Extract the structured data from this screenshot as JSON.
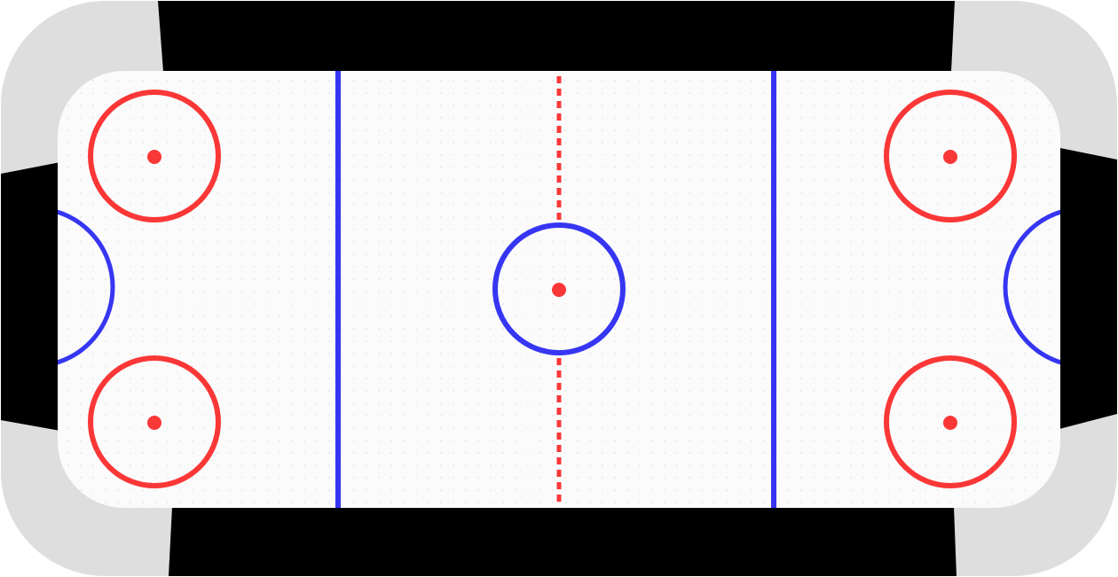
{
  "game": {
    "type": "air-hockey-table",
    "colors": {
      "background": "#ffffff",
      "rail_outer": "#dedede",
      "wall": "#000000",
      "ice": "#fbfbfb",
      "ice_dot": "#e2e2e2",
      "red_line": "#fa3737",
      "blue_line": "#3636f2"
    },
    "markings": {
      "faceoff_circles": [
        "top-left",
        "bottom-left",
        "top-right",
        "bottom-right"
      ],
      "center_circle": "center",
      "blue_lines": [
        "left",
        "right"
      ],
      "center_line": "dashed red",
      "goal_creases": [
        "left",
        "right"
      ]
    }
  }
}
